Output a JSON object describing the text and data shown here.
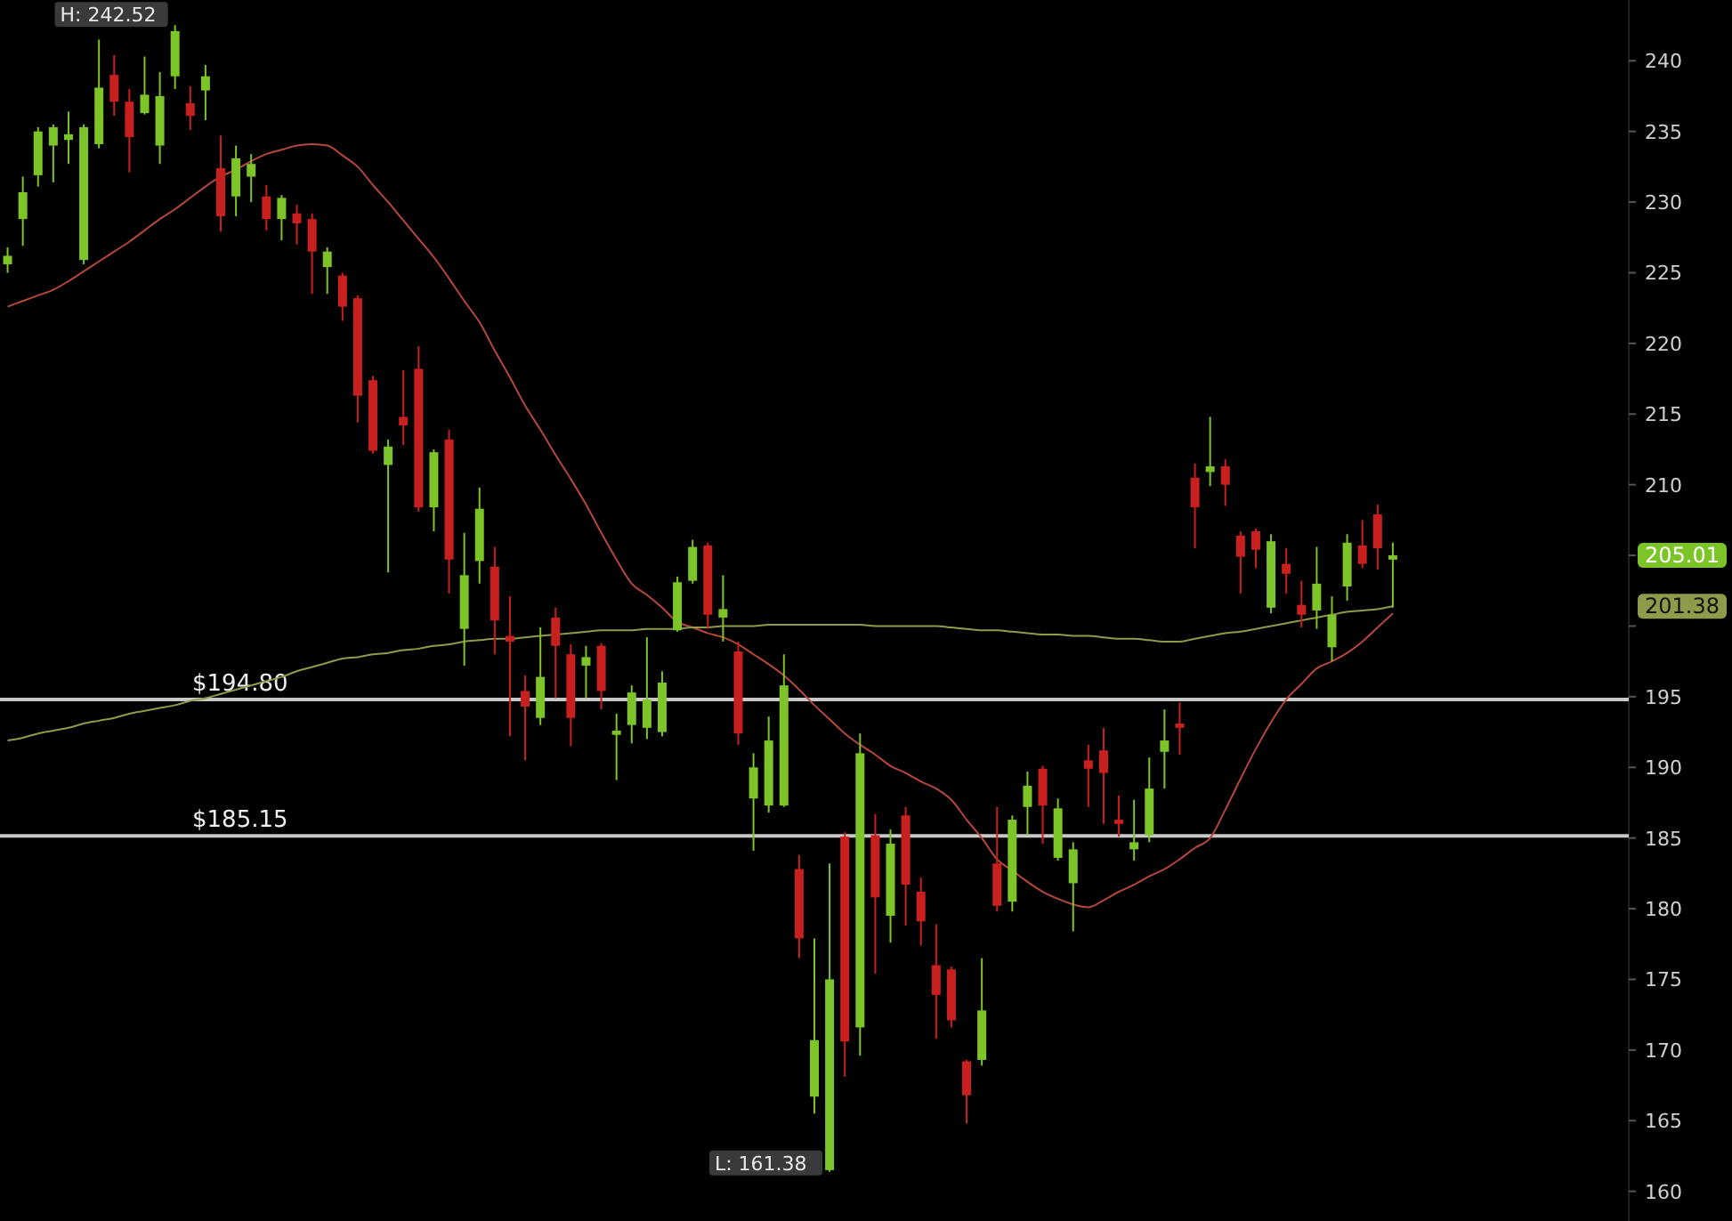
{
  "chart_data": {
    "type": "candlestick",
    "categories": [
      null,
      null,
      null,
      null,
      null,
      null,
      null,
      null,
      null,
      null,
      null,
      null,
      null,
      null,
      null,
      null,
      null,
      null,
      null,
      null,
      null,
      null,
      null,
      null,
      null,
      null,
      null,
      null,
      null,
      null,
      null,
      null,
      null,
      null,
      null,
      null,
      null,
      null,
      null,
      null,
      null,
      null,
      null,
      null,
      null,
      null,
      null,
      null,
      null,
      null,
      null,
      null,
      null,
      null,
      null,
      null,
      null,
      null,
      null,
      null,
      null,
      null,
      null,
      null,
      null,
      null,
      null,
      null,
      null,
      null,
      null,
      null,
      null,
      null,
      null,
      null,
      null,
      null,
      null,
      null,
      null,
      null,
      null,
      null,
      null,
      null,
      null,
      null,
      null,
      null,
      null,
      null,
      null,
      null,
      null,
      null,
      null,
      null,
      null,
      null,
      null,
      null,
      null,
      null,
      null,
      null,
      null
    ],
    "ohlc": [
      [
        225.6,
        226.8,
        225.0,
        226.2
      ],
      [
        228.8,
        231.8,
        226.9,
        230.7
      ],
      [
        231.9,
        235.3,
        231.1,
        235.0
      ],
      [
        234.0,
        235.5,
        231.4,
        235.3
      ],
      [
        234.4,
        236.4,
        232.7,
        234.8
      ],
      [
        225.9,
        235.5,
        225.6,
        235.3
      ],
      [
        234.1,
        241.5,
        233.8,
        238.1
      ],
      [
        239.0,
        240.4,
        236.1,
        237.1
      ],
      [
        237.1,
        238.0,
        232.1,
        234.6
      ],
      [
        236.3,
        240.3,
        236.2,
        237.6
      ],
      [
        234.0,
        239.2,
        232.7,
        237.5
      ],
      [
        238.9,
        242.52,
        238.0,
        242.1
      ],
      [
        237.0,
        238.2,
        235.1,
        236.1
      ],
      [
        237.9,
        239.7,
        235.8,
        238.9
      ],
      [
        232.4,
        234.7,
        227.9,
        229.0
      ],
      [
        230.4,
        234.0,
        229.0,
        233.1
      ],
      [
        231.8,
        233.4,
        230.0,
        232.7
      ],
      [
        230.4,
        231.2,
        228.0,
        228.8
      ],
      [
        228.8,
        230.5,
        227.3,
        230.3
      ],
      [
        229.2,
        229.8,
        227.0,
        228.5
      ],
      [
        228.8,
        229.2,
        223.5,
        226.5
      ],
      [
        225.4,
        226.8,
        223.5,
        226.5
      ],
      [
        224.8,
        225.0,
        221.6,
        222.6
      ],
      [
        223.2,
        223.4,
        214.4,
        216.3
      ],
      [
        217.4,
        217.7,
        212.2,
        212.4
      ],
      [
        211.4,
        213.2,
        203.8,
        212.7
      ],
      [
        214.8,
        218.1,
        212.8,
        214.2
      ],
      [
        218.2,
        219.8,
        208.1,
        208.4
      ],
      [
        208.4,
        212.5,
        206.7,
        212.3
      ],
      [
        213.2,
        213.9,
        202.3,
        204.7
      ],
      [
        199.8,
        206.6,
        197.2,
        203.6
      ],
      [
        204.6,
        209.8,
        203.0,
        208.3
      ],
      [
        204.2,
        205.6,
        198.0,
        200.4
      ],
      [
        199.3,
        202.1,
        192.2,
        198.9
      ],
      [
        195.4,
        196.5,
        190.5,
        194.3
      ],
      [
        193.5,
        199.9,
        193.0,
        196.4
      ],
      [
        200.6,
        201.3,
        194.9,
        198.6
      ],
      [
        198.0,
        198.7,
        191.5,
        193.5
      ],
      [
        197.2,
        198.6,
        194.9,
        197.8
      ],
      [
        198.6,
        198.8,
        194.1,
        195.4
      ],
      [
        192.3,
        193.8,
        189.1,
        192.6
      ],
      [
        193.0,
        195.8,
        191.7,
        195.3
      ],
      [
        192.8,
        199.2,
        192.0,
        194.8
      ],
      [
        192.5,
        196.8,
        192.2,
        196.0
      ],
      [
        199.7,
        203.5,
        199.6,
        203.1
      ],
      [
        203.2,
        206.1,
        203.0,
        205.6
      ],
      [
        205.7,
        205.9,
        199.8,
        200.8
      ],
      [
        200.6,
        203.6,
        198.9,
        201.2
      ],
      [
        198.2,
        198.9,
        191.6,
        192.4
      ],
      [
        187.8,
        191.0,
        184.1,
        190.0
      ],
      [
        187.3,
        193.6,
        186.8,
        191.9
      ],
      [
        187.3,
        198.0,
        187.2,
        195.8
      ],
      [
        182.8,
        183.8,
        176.5,
        177.9
      ],
      [
        166.7,
        177.9,
        165.5,
        170.7
      ],
      [
        161.5,
        183.2,
        161.38,
        175.0
      ],
      [
        185.1,
        185.4,
        168.1,
        170.6
      ],
      [
        171.6,
        192.4,
        169.6,
        191.0
      ],
      [
        185.2,
        186.7,
        175.4,
        180.8
      ],
      [
        179.5,
        185.6,
        177.6,
        184.6
      ],
      [
        186.6,
        187.2,
        178.8,
        181.7
      ],
      [
        181.2,
        182.2,
        177.4,
        179.1
      ],
      [
        176.0,
        178.9,
        170.8,
        173.9
      ],
      [
        175.7,
        175.9,
        171.6,
        172.1
      ],
      [
        169.2,
        169.3,
        164.8,
        166.8
      ],
      [
        169.3,
        176.5,
        168.9,
        172.8
      ],
      [
        183.2,
        187.2,
        179.8,
        180.2
      ],
      [
        180.5,
        186.6,
        179.8,
        186.3
      ],
      [
        187.2,
        189.7,
        185.2,
        188.7
      ],
      [
        189.9,
        190.1,
        184.6,
        187.3
      ],
      [
        183.6,
        187.8,
        183.4,
        187.1
      ],
      [
        181.8,
        184.7,
        178.4,
        184.2
      ],
      [
        190.5,
        191.6,
        187.2,
        189.9
      ],
      [
        191.2,
        192.8,
        186.0,
        189.6
      ],
      [
        186.3,
        188.0,
        185.1,
        186.0
      ],
      [
        184.2,
        187.7,
        183.4,
        184.7
      ],
      [
        185.2,
        190.7,
        184.7,
        188.5
      ],
      [
        191.1,
        194.1,
        188.5,
        191.9
      ],
      [
        193.1,
        194.6,
        190.9,
        192.8
      ],
      [
        210.5,
        211.5,
        205.5,
        208.4
      ],
      [
        210.9,
        214.8,
        209.9,
        211.3
      ],
      [
        211.3,
        211.8,
        208.5,
        210.0
      ],
      [
        206.4,
        206.7,
        202.3,
        204.9
      ],
      [
        206.7,
        206.9,
        204.1,
        205.4
      ],
      [
        201.3,
        206.5,
        200.9,
        206.0
      ],
      [
        204.4,
        205.5,
        202.3,
        203.7
      ],
      [
        201.5,
        203.2,
        199.9,
        200.8
      ],
      [
        201.1,
        205.6,
        199.8,
        203.0
      ],
      [
        198.5,
        202.1,
        197.5,
        200.8
      ],
      [
        202.8,
        206.5,
        201.8,
        205.9
      ],
      [
        205.7,
        207.5,
        204.1,
        204.4
      ],
      [
        207.9,
        208.6,
        204.0,
        205.5
      ],
      [
        204.7,
        205.9,
        201.3,
        205.01
      ],
      null,
      null,
      null,
      null,
      null,
      null,
      null,
      null,
      null,
      null,
      null,
      null,
      null,
      null,
      null
    ],
    "colors": [
      "#7cc427",
      "#7cc427",
      "#7cc427",
      "#7cc427",
      "#7cc427",
      "#7cc427",
      "#7cc427",
      "#c8201e",
      "#c8201e",
      "#7cc427",
      "#7cc427",
      "#7cc427",
      "#c8201e",
      "#7cc427",
      "#c8201e",
      "#7cc427",
      "#7cc427",
      "#c8201e",
      "#7cc427",
      "#c8201e",
      "#c8201e",
      "#7cc427",
      "#c8201e",
      "#c8201e",
      "#c8201e",
      "#7cc427",
      "#c8201e",
      "#c8201e",
      "#7cc427",
      "#c8201e",
      "#7cc427",
      "#7cc427",
      "#c8201e",
      "#c8201e",
      "#c8201e",
      "#7cc427",
      "#c8201e",
      "#c8201e",
      "#7cc427",
      "#c8201e",
      "#7cc427",
      "#7cc427",
      "#7cc427",
      "#7cc427",
      "#7cc427",
      "#7cc427",
      "#c8201e",
      "#7cc427",
      "#c8201e",
      "#7cc427",
      "#7cc427",
      "#7cc427",
      "#c8201e",
      "#7cc427",
      "#7cc427",
      "#c8201e",
      "#7cc427",
      "#c8201e",
      "#7cc427",
      "#c8201e",
      "#c8201e",
      "#c8201e",
      "#c8201e",
      "#c8201e",
      "#7cc427",
      "#c8201e",
      "#7cc427",
      "#7cc427",
      "#c8201e",
      "#7cc427",
      "#7cc427",
      "#c8201e",
      "#c8201e",
      "#c8201e",
      "#7cc427",
      "#7cc427",
      "#7cc427",
      "#c8201e",
      "#c8201e",
      "#7cc427",
      "#c8201e",
      "#c8201e",
      "#c8201e",
      "#7cc427",
      "#c8201e",
      "#c8201e",
      "#7cc427",
      "#7cc427",
      "#7cc427",
      "#c8201e",
      "#c8201e",
      "#7cc427",
      null,
      null,
      null,
      null,
      null,
      null,
      null,
      null,
      null,
      null,
      null,
      null,
      null,
      null,
      null
    ],
    "series": [
      {
        "type": "line",
        "color": "#b5473c",
        "values": [
          222.6,
          223.0,
          223.4,
          223.8,
          224.4,
          225.1,
          225.8,
          226.5,
          227.2,
          228.0,
          228.8,
          229.5,
          230.3,
          231.1,
          231.8,
          232.3,
          232.9,
          233.4,
          233.7,
          234.0,
          234.1,
          234.0,
          233.3,
          232.5,
          231.2,
          230.0,
          228.7,
          227.4,
          226.1,
          224.6,
          223.0,
          221.5,
          219.5,
          217.6,
          215.6,
          213.9,
          212.1,
          210.4,
          208.6,
          206.6,
          204.7,
          203.0,
          202.2,
          201.3,
          200.3,
          199.9,
          199.5,
          199.2,
          198.7,
          198.0,
          197.3,
          196.5,
          195.5,
          194.4,
          193.4,
          192.4,
          191.6,
          190.9,
          190.1,
          189.6,
          189.0,
          188.5,
          187.7,
          186.3,
          185.0,
          183.5,
          182.7,
          181.9,
          181.2,
          180.7,
          180.3,
          180.1,
          180.6,
          181.2,
          181.7,
          182.3,
          182.8,
          183.5,
          184.3,
          185.0,
          187.0,
          189.2,
          191.3,
          193.2,
          194.8,
          195.9,
          197.0,
          197.5,
          198.1,
          198.9,
          199.9,
          200.9,
          null,
          null,
          null,
          null,
          null,
          null,
          null,
          null,
          null,
          null,
          null,
          null,
          null,
          null,
          null
        ]
      },
      {
        "type": "line",
        "color": "#8f9a4a",
        "values": [
          191.9,
          192.1,
          192.4,
          192.6,
          192.8,
          193.1,
          193.3,
          193.5,
          193.8,
          194.0,
          194.2,
          194.4,
          194.7,
          194.9,
          195.2,
          195.5,
          195.8,
          196.1,
          196.4,
          196.8,
          197.1,
          197.4,
          197.7,
          197.8,
          198.0,
          198.1,
          198.3,
          198.4,
          198.6,
          198.7,
          198.9,
          199.0,
          199.1,
          199.1,
          199.2,
          199.3,
          199.4,
          199.5,
          199.6,
          199.7,
          199.7,
          199.7,
          199.8,
          199.8,
          199.8,
          199.9,
          199.9,
          200.0,
          200.0,
          200.0,
          200.1,
          200.1,
          200.1,
          200.1,
          200.1,
          200.1,
          200.1,
          200.0,
          200.0,
          200.0,
          200.0,
          200.0,
          199.9,
          199.8,
          199.7,
          199.7,
          199.6,
          199.5,
          199.4,
          199.4,
          199.3,
          199.3,
          199.2,
          199.1,
          199.1,
          199.0,
          198.9,
          198.9,
          199.1,
          199.3,
          199.5,
          199.6,
          199.8,
          200.0,
          200.2,
          200.4,
          200.6,
          200.8,
          201.0,
          201.1,
          201.2,
          201.4,
          null,
          null,
          null,
          null,
          null,
          null,
          null,
          null,
          null,
          null,
          null,
          null,
          null,
          null,
          null
        ]
      }
    ],
    "ylim": [
      157.9,
      244.3
    ],
    "yticks": [
      160,
      165,
      170,
      175,
      180,
      185,
      190,
      195,
      {
        "value": 200,
        "label": null
      },
      {
        "value": 205,
        "label": null
      },
      210,
      215,
      220,
      225,
      230,
      235,
      240
    ],
    "ref_lines": [
      {
        "axis": "y",
        "value": 194.8,
        "label": "$194.80",
        "color": "#c8c8c8"
      },
      {
        "axis": "y",
        "value": 185.15,
        "label": "$185.15",
        "color": "#c8c8c8"
      }
    ],
    "annotations": [
      "H: 242.52",
      "L: 161.38",
      "205.01",
      "201.38"
    ],
    "grid": false
  }
}
